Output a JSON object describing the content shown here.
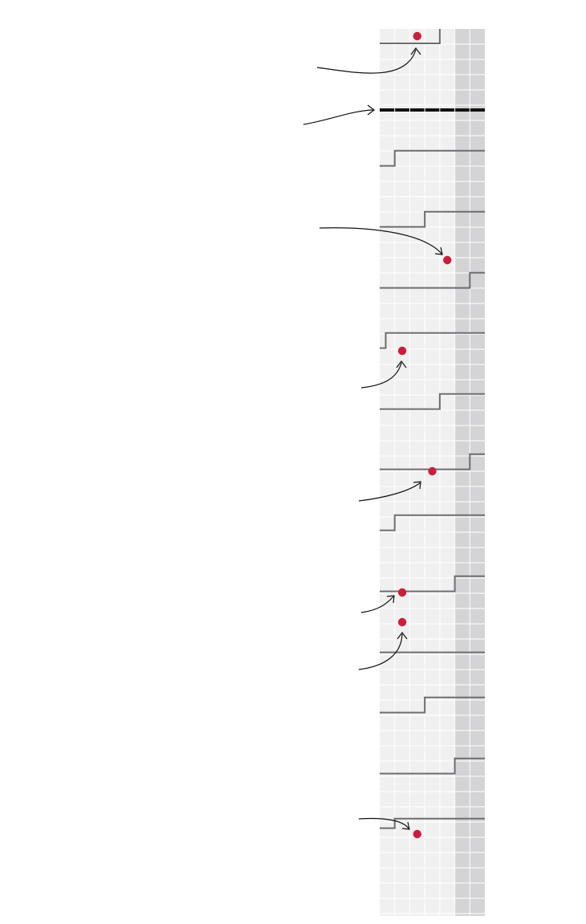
{
  "colors": {
    "panel": "#f0f0f0",
    "panel_shaded": "#d4d4d6",
    "grid": "#ffffff",
    "step_line": "#6e6e70",
    "divider": "#111111",
    "dot": "#c8203c",
    "arrow": "#111111"
  },
  "chart_data": {
    "type": "step",
    "title": "",
    "xlabel": "",
    "ylabel": "",
    "grid": true,
    "x_columns": 7,
    "shaded_columns": [
      6,
      7
    ],
    "divider_after_row": 0,
    "rows": [
      {
        "label": "",
        "base": [
          0,
          4
        ],
        "step": [
          4,
          0
        ],
        "dot": 2.5
      },
      {
        "label": "",
        "base": [
          0,
          1
        ],
        "step": [
          1,
          7
        ],
        "dot": null
      },
      {
        "label": "",
        "base": [
          0,
          3
        ],
        "step": [
          3,
          7
        ],
        "dot": 4.5
      },
      {
        "label": "",
        "base": [
          0,
          6
        ],
        "step": [
          6,
          7
        ],
        "dot": null
      },
      {
        "label": "",
        "base": [
          0,
          0.4
        ],
        "step": [
          0.4,
          7
        ],
        "dot": 1.5
      },
      {
        "label": "",
        "base": [
          0,
          4
        ],
        "step": [
          4,
          7
        ],
        "dot": 3.5
      },
      {
        "label": "",
        "base": [
          0,
          6
        ],
        "step": [
          6,
          7
        ],
        "dot": null
      },
      {
        "label": "",
        "base": [
          0,
          1
        ],
        "step": [
          1,
          7
        ],
        "dot": 1.5
      },
      {
        "label": "",
        "base": [
          0,
          5
        ],
        "step": [
          5,
          7
        ],
        "dot": 1.5
      },
      {
        "label": "",
        "base": [
          0,
          7
        ],
        "step": null,
        "dot": null
      },
      {
        "label": "",
        "base": [
          0,
          3
        ],
        "step": [
          3,
          7
        ],
        "dot": null
      },
      {
        "label": "",
        "base": [
          0,
          5
        ],
        "step": [
          5,
          7
        ],
        "dot": 2.5
      },
      {
        "label": "",
        "base": [
          0,
          1
        ],
        "step": [
          1,
          7
        ],
        "dot": null
      }
    ],
    "annotations": [
      {
        "row": 0,
        "text": ""
      },
      {
        "row": "divider",
        "text": ""
      },
      {
        "row": 2,
        "text": ""
      },
      {
        "row": 4,
        "text": ""
      },
      {
        "row": 5,
        "text": ""
      },
      {
        "row": 7,
        "text": ""
      },
      {
        "row": 8,
        "text": ""
      },
      {
        "row": 11,
        "text": ""
      }
    ]
  }
}
